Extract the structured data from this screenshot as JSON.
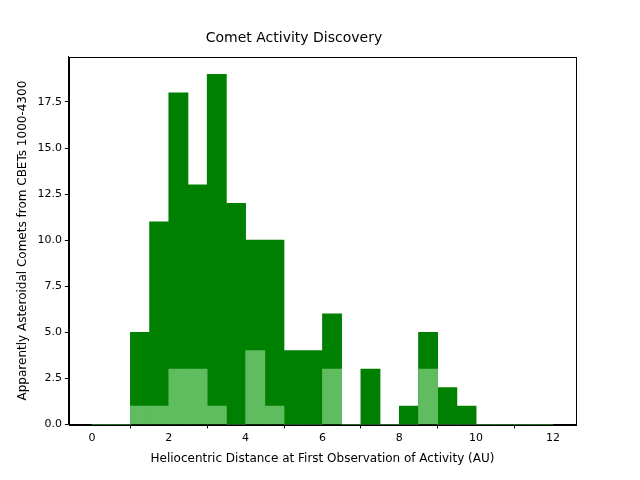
{
  "chart_data": {
    "type": "histogram",
    "title": "Comet Activity Discovery",
    "x_label": "Heliocentric Distance at First Observation of Activity (AU)",
    "y_label": "Apparently Asteroidal Comets from CBETs 1000-4300",
    "bins": [
      0,
      0.5,
      1,
      1.5,
      2,
      2.5,
      3,
      3.5,
      4,
      4.5,
      5,
      5.5,
      6,
      6.5,
      7,
      7.5,
      8,
      8.5,
      9,
      9.5,
      10,
      10.5,
      11,
      11.5,
      12
    ],
    "series": [
      {
        "color": "#008000",
        "values": [
          0,
          0,
          5,
          11,
          18,
          13,
          19,
          12,
          10,
          10,
          4,
          4,
          6,
          0,
          3,
          0,
          1,
          5,
          2,
          1,
          0,
          0,
          0,
          0
        ]
      },
      {
        "color": "#5fbd5f",
        "values": [
          0,
          0,
          1,
          1,
          3,
          3,
          1,
          0,
          4,
          1,
          0,
          0,
          3,
          0,
          0,
          0,
          0,
          3,
          0,
          0,
          0,
          0,
          0,
          0
        ]
      }
    ],
    "xlim": [
      -0.6,
      12.6
    ],
    "xticks": [
      0,
      2,
      4,
      6,
      8,
      10,
      12
    ],
    "ylim": [
      0,
      19.95
    ],
    "yticks": [
      {
        "value": 0,
        "label": "0.0"
      },
      2.5,
      {
        "value": 5,
        "label": "5.0"
      },
      7.5,
      {
        "value": 10,
        "label": "10.0"
      },
      12.5,
      {
        "value": 15,
        "label": "15.0"
      },
      17.5
    ],
    "grid": false
  }
}
